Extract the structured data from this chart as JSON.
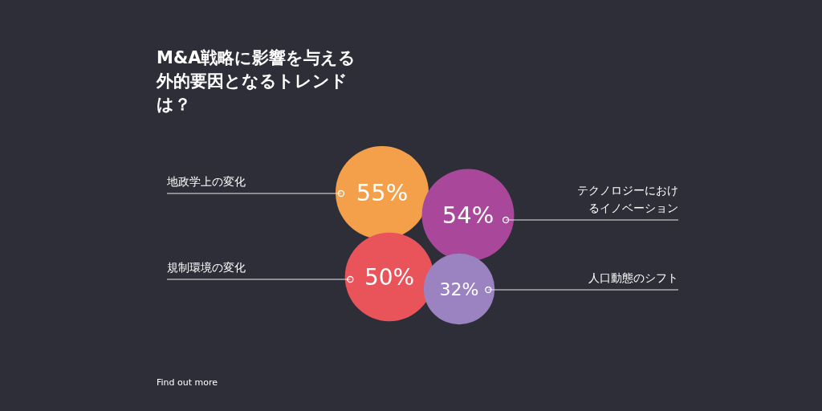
{
  "chart_data": {
    "type": "other",
    "title": "M&A戦略に影響を与える外的要因となるトレンドは？",
    "categories": [
      "地政学上の変化",
      "テクノロジーにおけるイノベーション",
      "規制環境の変化",
      "人口動態のシフト"
    ],
    "values": [
      55,
      54,
      50,
      32
    ],
    "colors": [
      "#f4a04a",
      "#a9479a",
      "#e9545a",
      "#9b82c0"
    ],
    "value_labels": [
      "55%",
      "54%",
      "50%",
      "32%"
    ],
    "annotations": [
      "Find out more"
    ]
  }
}
